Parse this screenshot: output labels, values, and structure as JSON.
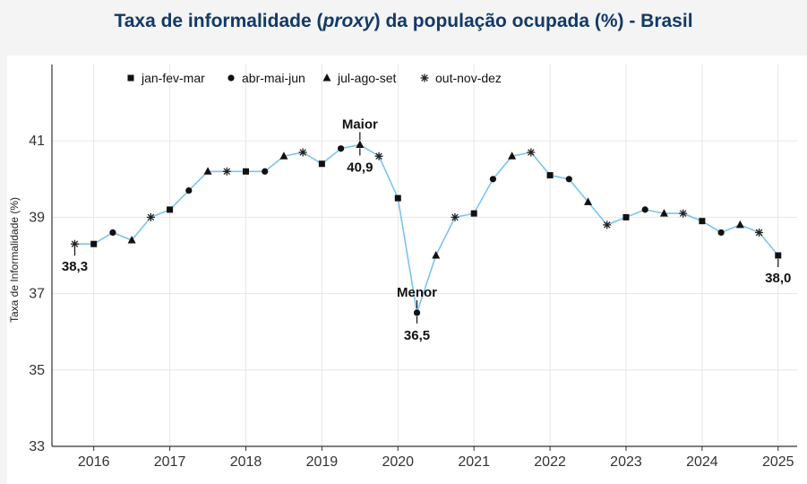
{
  "title": {
    "part1": "Taxa de informalidade (",
    "italic": "proxy",
    "part2": ") da população ocupada (%) - Brasil"
  },
  "colors": {
    "title": "#123a66",
    "line": "#7bc3ee",
    "grid": "#e6e6e6",
    "axis": "#333333"
  },
  "chart_data": {
    "type": "line",
    "ylabel": "Taxa de Informalidade (%)",
    "ylim": [
      33,
      43
    ],
    "xlim": [
      2015.45,
      2025.25
    ],
    "x_ticks": [
      2016,
      2017,
      2018,
      2019,
      2020,
      2021,
      2022,
      2023,
      2024,
      2025
    ],
    "y_ticks": [
      33,
      35,
      37,
      39,
      41
    ],
    "legend": [
      {
        "label": "jan-fev-mar",
        "marker": "square"
      },
      {
        "label": "abr-mai-jun",
        "marker": "circle"
      },
      {
        "label": "jul-ago-set",
        "marker": "triangle"
      },
      {
        "label": "out-nov-dez",
        "marker": "asterisk"
      }
    ],
    "legend_position": "top-left",
    "grid": true,
    "series": [
      {
        "points": [
          {
            "x": "2015 out-nov-dez",
            "y": 38.3
          },
          {
            "x": "2016 jan-fev-mar",
            "y": 38.3
          },
          {
            "x": "2016 abr-mai-jun",
            "y": 38.6
          },
          {
            "x": "2016 jul-ago-set",
            "y": 38.4
          },
          {
            "x": "2016 out-nov-dez",
            "y": 39.0
          },
          {
            "x": "2017 jan-fev-mar",
            "y": 39.2
          },
          {
            "x": "2017 abr-mai-jun",
            "y": 39.7
          },
          {
            "x": "2017 jul-ago-set",
            "y": 40.2
          },
          {
            "x": "2017 out-nov-dez",
            "y": 40.2
          },
          {
            "x": "2018 jan-fev-mar",
            "y": 40.2
          },
          {
            "x": "2018 abr-mai-jun",
            "y": 40.2
          },
          {
            "x": "2018 jul-ago-set",
            "y": 40.6
          },
          {
            "x": "2018 out-nov-dez",
            "y": 40.7
          },
          {
            "x": "2019 jan-fev-mar",
            "y": 40.4
          },
          {
            "x": "2019 abr-mai-jun",
            "y": 40.8
          },
          {
            "x": "2019 jul-ago-set",
            "y": 40.9
          },
          {
            "x": "2019 out-nov-dez",
            "y": 40.6
          },
          {
            "x": "2020 jan-fev-mar",
            "y": 39.5
          },
          {
            "x": "2020 abr-mai-jun",
            "y": 36.5
          },
          {
            "x": "2020 jul-ago-set",
            "y": 38.0
          },
          {
            "x": "2020 out-nov-dez",
            "y": 39.0
          },
          {
            "x": "2021 jan-fev-mar",
            "y": 39.1
          },
          {
            "x": "2021 abr-mai-jun",
            "y": 40.0
          },
          {
            "x": "2021 jul-ago-set",
            "y": 40.6
          },
          {
            "x": "2021 out-nov-dez",
            "y": 40.7
          },
          {
            "x": "2022 jan-fev-mar",
            "y": 40.1
          },
          {
            "x": "2022 abr-mai-jun",
            "y": 40.0
          },
          {
            "x": "2022 jul-ago-set",
            "y": 39.4
          },
          {
            "x": "2022 out-nov-dez",
            "y": 38.8
          },
          {
            "x": "2023 jan-fev-mar",
            "y": 39.0
          },
          {
            "x": "2023 abr-mai-jun",
            "y": 39.2
          },
          {
            "x": "2023 jul-ago-set",
            "y": 39.1
          },
          {
            "x": "2023 out-nov-dez",
            "y": 39.1
          },
          {
            "x": "2024 jan-fev-mar",
            "y": 38.9
          },
          {
            "x": "2024 abr-mai-jun",
            "y": 38.6
          },
          {
            "x": "2024 jul-ago-set",
            "y": 38.8
          },
          {
            "x": "2024 out-nov-dez",
            "y": 38.6
          },
          {
            "x": "2025 jan-fev-mar",
            "y": 38.0
          }
        ]
      }
    ],
    "annotations": [
      {
        "point": "2015 out-nov-dez",
        "text": "38,3",
        "placement": "below"
      },
      {
        "point": "2019 jul-ago-set",
        "label": "Maior",
        "text": "40,9",
        "placement": "both"
      },
      {
        "point": "2020 abr-mai-jun",
        "label": "Menor",
        "text": "36,5",
        "placement": "both"
      },
      {
        "point": "2025 jan-fev-mar",
        "text": "38,0",
        "placement": "below"
      }
    ]
  }
}
